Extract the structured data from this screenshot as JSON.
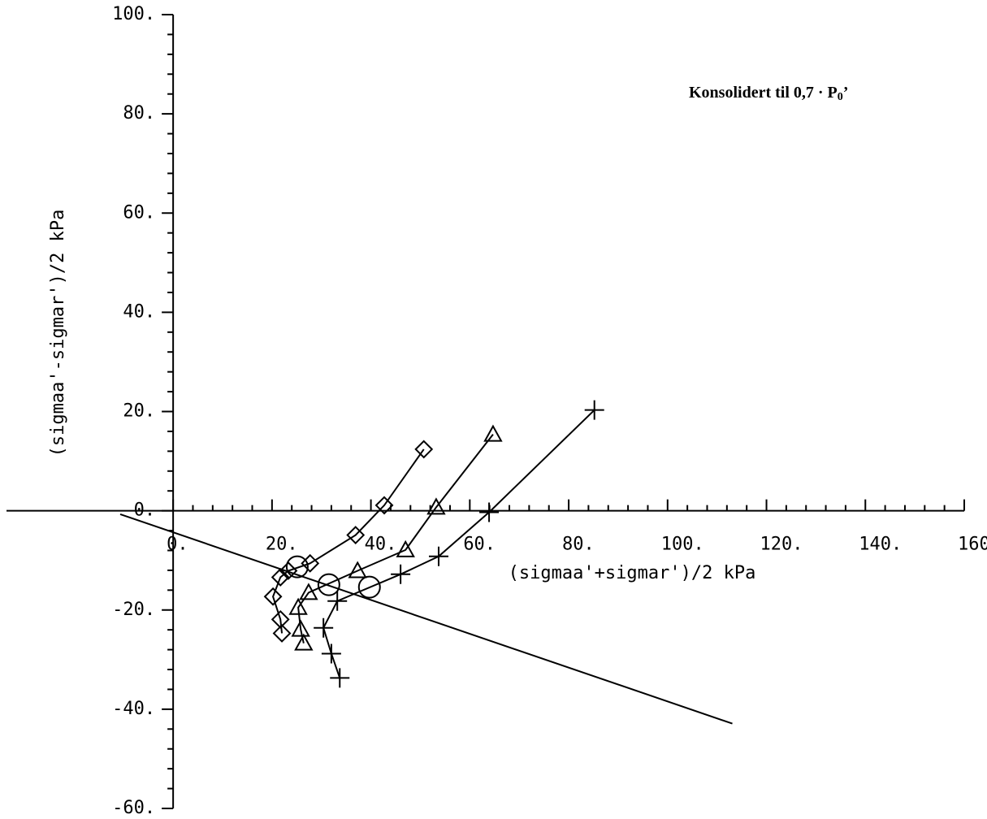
{
  "chart_data": {
    "type": "scatter",
    "xlabel": "(sigmaa'+sigmar')/2 kPa",
    "ylabel": "(sigmaa'-sigmar')/2 kPa",
    "annotation": {
      "text": "Konsolidert til 0,7  · P",
      "subscript": "0",
      "suffix": "’"
    },
    "xlim": [
      -33.7,
      160
    ],
    "ylim": [
      -60,
      100
    ],
    "xticks": [
      {
        "value": 0,
        "label": "0."
      },
      {
        "value": 20,
        "label": "20."
      },
      {
        "value": 40,
        "label": "40."
      },
      {
        "value": 60,
        "label": "60."
      },
      {
        "value": 80,
        "label": "80."
      },
      {
        "value": 100,
        "label": "100."
      },
      {
        "value": 120,
        "label": "120."
      },
      {
        "value": 140,
        "label": "140."
      },
      {
        "value": 160,
        "label": "160."
      }
    ],
    "yticks": [
      {
        "value": -60,
        "label": "-60."
      },
      {
        "value": -40,
        "label": "-40."
      },
      {
        "value": -20,
        "label": "-20."
      },
      {
        "value": 0,
        "label": "0."
      },
      {
        "value": 20,
        "label": "20."
      },
      {
        "value": 40,
        "label": "40."
      },
      {
        "value": 60,
        "label": "60."
      },
      {
        "value": 80,
        "label": "80."
      },
      {
        "value": 100,
        "label": "100."
      }
    ],
    "minor_divisions": 5,
    "series": [
      {
        "marker": "diamond",
        "color": "#000000",
        "x": [
          50.7,
          42.7,
          36.9,
          27.7,
          23.3,
          21.7,
          20.2,
          21.7,
          22.0
        ],
        "values": [
          12.4,
          1.1,
          -4.9,
          -10.6,
          -12.1,
          -13.4,
          -17.3,
          -21.9,
          -24.7
        ]
      },
      {
        "marker": "triangle",
        "color": "#000000",
        "x": [
          64.7,
          53.2,
          47.0,
          37.3,
          27.4,
          25.3,
          25.8,
          26.4
        ],
        "values": [
          15.4,
          0.7,
          -7.9,
          -12.1,
          -16.5,
          -19.5,
          -23.9,
          -26.7
        ]
      },
      {
        "marker": "plus",
        "color": "#000000",
        "x": [
          85.2,
          63.9,
          53.7,
          46.0,
          33.2,
          30.4,
          32.0,
          33.7
        ],
        "values": [
          20.3,
          -0.3,
          -9.2,
          -12.8,
          -18.2,
          -23.6,
          -28.8,
          -33.7
        ]
      },
      {
        "marker": "circle",
        "color": "#000000",
        "x": [
          25.1,
          31.5,
          39.7
        ],
        "values": [
          -11.3,
          -14.9,
          -15.4
        ]
      },
      {
        "marker": "none",
        "color": "#000000",
        "x": [
          -10.7,
          113.1
        ],
        "values": [
          -0.7,
          -42.9
        ]
      }
    ]
  }
}
